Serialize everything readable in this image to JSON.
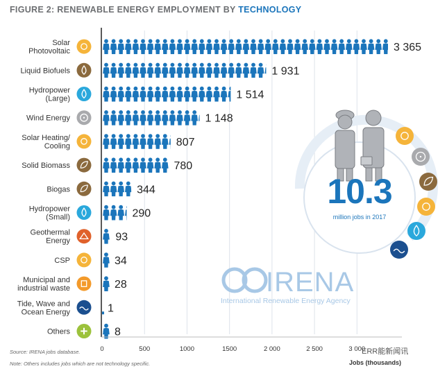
{
  "title_prefix": "FIGURE 2: RENEWABLE ENERGY EMPLOYMENT BY ",
  "title_highlight": "TECHNOLOGY",
  "total_jobs": "10.3",
  "total_jobs_caption": "million jobs in 2017",
  "brand": "IRENA",
  "brand_full": "International Renewable Energy Agency",
  "source": "Source: IRENA jobs database.",
  "note": "Note: Others includes jobs which are not technology specific.",
  "watermark": "ERR能新闻讯",
  "colors": {
    "title_grey": "#6d6f72",
    "title_blue": "#1b75bb",
    "figure_blue": "#1b75bb",
    "solar_icon": "#f5b43a",
    "bio_icon": "#8b6a3e",
    "hydro_icon": "#2aa8dc",
    "wind_icon": "#a9aaad",
    "geo_icon": "#e0612b",
    "waste_icon": "#f39a2b",
    "tide_icon": "#1b4f8f",
    "others_icon": "#9cc23c"
  },
  "chart_data": {
    "type": "bar",
    "orientation": "horizontal",
    "categories": [
      "Solar\nPhotovoltaic",
      "Liquid Biofuels",
      "Hydropower\n(Large)",
      "Wind Energy",
      "Solar Heating/\nCooling",
      "Solid Biomass",
      "Biogas",
      "Hydropower\n(Small)",
      "Geothermal\nEnergy",
      "CSP",
      "Municipal and\nindustrial waste",
      "Tide, Wave and\nOcean Energy",
      "Others"
    ],
    "values": [
      3365,
      1931,
      1514,
      1148,
      807,
      780,
      344,
      290,
      93,
      34,
      28,
      1,
      8
    ],
    "value_labels": [
      "3 365",
      "1 931",
      "1 514",
      "1 148",
      "807",
      "780",
      "344",
      "290",
      "93",
      "34",
      "28",
      "1",
      "8"
    ],
    "icons": [
      "sun-icon",
      "biofuel-drop-icon",
      "water-drop-icon",
      "wind-turbine-icon",
      "sun-icon",
      "biomass-leaf-icon",
      "biogas-leaf-icon",
      "water-drop-icon",
      "geothermal-icon",
      "sun-icon",
      "waste-icon",
      "wave-icon",
      "plus-icon"
    ],
    "xticks": [
      0,
      500,
      1000,
      1500,
      2000,
      2500,
      3000
    ],
    "xtick_labels": [
      "0",
      "500",
      "1000",
      "1500",
      "2 000",
      "2 500",
      "3 000"
    ],
    "xlim": [
      0,
      3500
    ],
    "xlabel": "Jobs (thousands)",
    "ylabel": "",
    "grid": true
  }
}
